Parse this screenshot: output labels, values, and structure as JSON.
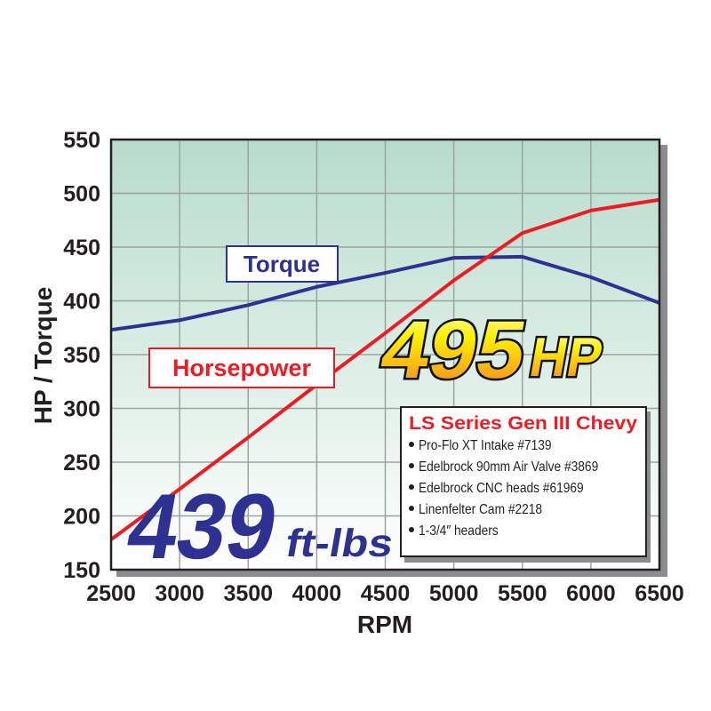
{
  "chart_data": {
    "type": "line",
    "xlabel": "RPM",
    "ylabel": "HP / Torque",
    "xlim": [
      2500,
      6500
    ],
    "ylim": [
      150,
      550
    ],
    "grid": true,
    "x": [
      2500,
      3000,
      3500,
      4000,
      4500,
      5000,
      5500,
      6000,
      6500
    ],
    "x_ticks": [
      "2500",
      "3000",
      "3500",
      "4000",
      "4500",
      "5000",
      "5500",
      "6000",
      "6500"
    ],
    "y_ticks": [
      "150",
      "200",
      "250",
      "300",
      "350",
      "400",
      "450",
      "500",
      "550"
    ],
    "series": [
      {
        "name": "Torque",
        "color": "#2e3192",
        "values": [
          373,
          382,
          396,
          413,
          426,
          440,
          441,
          422,
          398
        ]
      },
      {
        "name": "Horsepower",
        "color": "#ed1c24",
        "values": [
          178,
          225,
          273,
          322,
          370,
          419,
          463,
          484,
          494
        ]
      }
    ],
    "annotations": {
      "hp_peak": "495",
      "hp_unit": "HP",
      "torque_peak": "439",
      "torque_unit": "ft-lbs",
      "spec_title": "LS Series Gen III Chevy",
      "spec_items": [
        "Pro-Flo XT Intake #7139",
        "Edelbrock 90mm Air Valve #3869",
        "Edelbrock CNC heads #61969",
        "Linenfelter Cam #2218",
        "1-3/4″ headers"
      ]
    },
    "colors": {
      "background_top": "#b7dccb",
      "background_bottom": "#ffffff",
      "grid": "#9aa5a0"
    }
  }
}
